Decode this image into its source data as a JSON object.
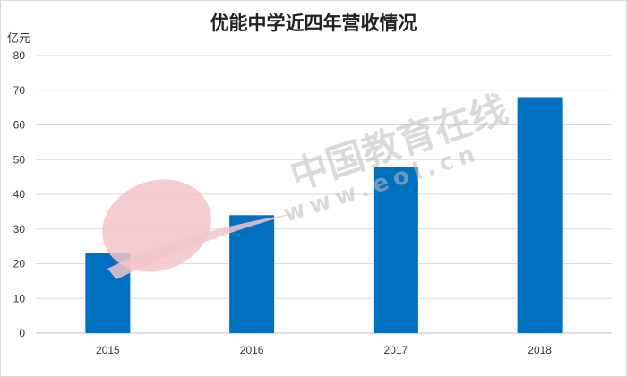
{
  "chart_data": {
    "type": "bar",
    "title": "优能中学近四年营收情况",
    "ylabel": "亿元",
    "xlabel": "",
    "categories": [
      "2015",
      "2016",
      "2017",
      "2018"
    ],
    "values": [
      23,
      34,
      48,
      68
    ],
    "ylim": [
      0,
      80
    ],
    "yticks": [
      0,
      10,
      20,
      30,
      40,
      50,
      60,
      70,
      80
    ],
    "grid": true,
    "legend": "none",
    "bar_color": "#0070c0"
  },
  "watermark": {
    "logo_text": "eol",
    "name": "中国教育在线",
    "url": "www.eol.cn",
    "logo_color": "#e8a0a8"
  }
}
